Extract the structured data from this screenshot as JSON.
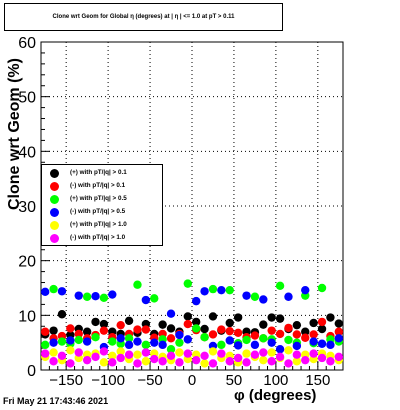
{
  "title": "Clone wrt Geom for Global η (degrees) at | η | <= 1.0 at pT > 0.11",
  "xlabel": "φ (degrees)",
  "ylabel": "Clone wrt Geom (%)",
  "datestamp": "Fri May 21 17:43:46 2021",
  "colors": {
    "black": "#000000",
    "red": "#ff0000",
    "green": "#00ff00",
    "blue": "#0000ff",
    "yellow": "#ffff00",
    "magenta": "#ff00ff"
  },
  "chart_data": {
    "type": "scatter",
    "title": "Clone wrt Geom for Global η (degrees) at | η | <= 1.0 at pT > 0.11",
    "xlabel": "φ (degrees)",
    "ylabel": "Clone wrt Geom (%)",
    "xlim": [
      -180,
      180
    ],
    "ylim": [
      0,
      60
    ],
    "x_ticks": [
      -150,
      -100,
      -50,
      0,
      50,
      100,
      150
    ],
    "x_tick_labels": [
      "−150",
      "−100",
      "−50",
      "0",
      "50",
      "100",
      "150"
    ],
    "y_ticks": [
      0,
      10,
      20,
      30,
      40,
      50,
      60
    ],
    "grid": true,
    "legend_position": "middle-left",
    "series": [
      {
        "name": "(+) with pT/|q| > 0.1",
        "color": "#000000",
        "x": [
          -175,
          -165,
          -155,
          -145,
          -135,
          -125,
          -115,
          -105,
          -95,
          -85,
          -75,
          -65,
          -55,
          -45,
          -35,
          -25,
          -15,
          -5,
          5,
          15,
          25,
          35,
          45,
          55,
          65,
          75,
          85,
          95,
          105,
          115,
          125,
          135,
          145,
          155,
          165,
          175
        ],
        "y": [
          6.5,
          7.2,
          10.2,
          6.4,
          7.5,
          7.0,
          8.8,
          8.4,
          7.0,
          6.6,
          9.0,
          6.8,
          8.4,
          6.6,
          8.3,
          7.6,
          7.0,
          9.8,
          8.8,
          7.5,
          9.8,
          7.2,
          8.6,
          9.6,
          7.0,
          6.9,
          8.3,
          9.6,
          9.4,
          7.5,
          8.2,
          7.0,
          8.6,
          7.5,
          9.6,
          8.5
        ]
      },
      {
        "name": "(-) with pT/|q| > 0.1",
        "color": "#ff0000",
        "x": [
          -175,
          -165,
          -155,
          -145,
          -135,
          -125,
          -115,
          -105,
          -95,
          -85,
          -75,
          -65,
          -55,
          -45,
          -35,
          -25,
          -15,
          -5,
          5,
          15,
          25,
          35,
          45,
          55,
          65,
          75,
          85,
          95,
          105,
          115,
          125,
          135,
          145,
          155,
          165,
          175
        ],
        "y": [
          7.0,
          5.8,
          6.2,
          7.6,
          6.6,
          5.8,
          6.4,
          7.2,
          6.0,
          8.2,
          6.6,
          7.4,
          7.4,
          5.9,
          6.6,
          5.8,
          6.6,
          8.4,
          7.3,
          6.0,
          6.5,
          7.4,
          7.1,
          6.8,
          6.0,
          6.3,
          5.8,
          7.2,
          6.6,
          7.7,
          6.5,
          5.9,
          6.5,
          8.8,
          6.2,
          7.0
        ]
      },
      {
        "name": "(+) with pT/|q| > 0.5",
        "color": "#00ff00",
        "x": [
          -175,
          -165,
          -155,
          -145,
          -135,
          -125,
          -115,
          -105,
          -95,
          -85,
          -75,
          -65,
          -55,
          -45,
          -35,
          -25,
          -15,
          -5,
          5,
          15,
          25,
          35,
          45,
          55,
          65,
          75,
          85,
          95,
          105,
          115,
          125,
          135,
          145,
          155,
          165,
          175
        ],
        "y": [
          4.6,
          14.8,
          5.2,
          4.8,
          5.5,
          13.4,
          6.0,
          13.2,
          5.2,
          4.8,
          5.8,
          15.6,
          4.6,
          13.1,
          5.6,
          3.8,
          5.0,
          15.8,
          7.6,
          6.0,
          14.8,
          4.6,
          14.6,
          4.9,
          5.5,
          13.4,
          5.8,
          5.6,
          15.4,
          5.5,
          5.0,
          13.6,
          4.9,
          15.0,
          5.6,
          5.2
        ]
      },
      {
        "name": "(-) with pT/|q| > 0.5",
        "color": "#0000ff",
        "x": [
          -175,
          -165,
          -155,
          -145,
          -135,
          -125,
          -115,
          -105,
          -95,
          -85,
          -75,
          -65,
          -55,
          -45,
          -35,
          -25,
          -15,
          -5,
          5,
          15,
          25,
          35,
          45,
          55,
          65,
          75,
          85,
          95,
          105,
          115,
          125,
          135,
          145,
          155,
          165,
          175
        ],
        "y": [
          14.3,
          5.0,
          14.4,
          5.4,
          13.6,
          5.2,
          13.5,
          4.2,
          13.8,
          5.8,
          4.6,
          5.2,
          12.8,
          5.0,
          4.6,
          10.3,
          6.4,
          5.6,
          12.6,
          14.4,
          4.4,
          14.6,
          5.4,
          4.5,
          13.6,
          4.6,
          12.9,
          5.0,
          3.8,
          13.4,
          4.4,
          14.6,
          5.2,
          4.8,
          4.6,
          5.8
        ]
      },
      {
        "name": "(+) with pT/|q| > 1.0",
        "color": "#ffff00",
        "x": [
          -175,
          -165,
          -155,
          -145,
          -135,
          -125,
          -115,
          -105,
          -95,
          -85,
          -75,
          -65,
          -55,
          -45,
          -35,
          -25,
          -15,
          -5,
          5,
          15,
          25,
          35,
          45,
          55,
          65,
          75,
          85,
          95,
          105,
          115,
          125,
          135,
          145,
          155,
          165,
          175
        ],
        "y": [
          2.4,
          3.2,
          1.8,
          3.6,
          2.2,
          2.8,
          3.0,
          1.4,
          2.6,
          3.4,
          2.0,
          2.8,
          1.6,
          3.0,
          2.4,
          1.8,
          3.2,
          2.0,
          2.8,
          1.2,
          3.4,
          2.2,
          2.6,
          1.4,
          3.0,
          2.4,
          1.8,
          3.2,
          2.2,
          3.6,
          1.6,
          2.8,
          2.0,
          3.0,
          2.6,
          1.8
        ]
      },
      {
        "name": "(-) with pT/|q| > 1.0",
        "color": "#ff00ff",
        "x": [
          -175,
          -165,
          -155,
          -145,
          -135,
          -125,
          -115,
          -105,
          -95,
          -85,
          -75,
          -65,
          -55,
          -45,
          -35,
          -25,
          -15,
          -5,
          5,
          15,
          25,
          35,
          45,
          55,
          65,
          75,
          85,
          95,
          105,
          115,
          125,
          135,
          145,
          155,
          165,
          175
        ],
        "y": [
          3.0,
          1.6,
          2.6,
          1.2,
          3.2,
          1.8,
          2.4,
          3.4,
          1.4,
          2.2,
          2.8,
          1.2,
          3.2,
          2.0,
          1.6,
          2.6,
          1.4,
          3.0,
          1.8,
          2.6,
          1.2,
          3.0,
          1.6,
          2.2,
          1.4,
          2.8,
          3.2,
          1.6,
          2.4,
          1.2,
          2.8,
          1.8,
          3.0,
          2.2,
          1.6,
          2.4
        ]
      }
    ]
  }
}
